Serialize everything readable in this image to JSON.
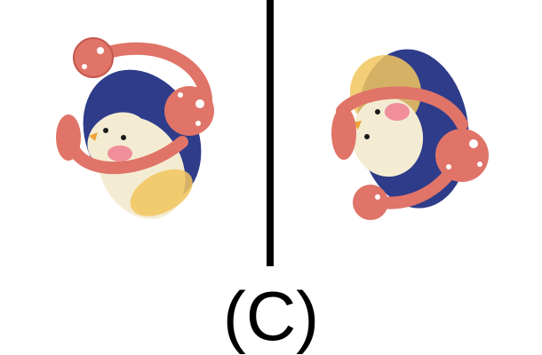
{
  "figure": {
    "caption": "(C)",
    "panels": [
      {
        "name": "penguin-toy-view-left",
        "description_icon": "penguin-toy-icon"
      },
      {
        "name": "penguin-toy-view-right",
        "description_icon": "penguin-toy-icon"
      }
    ]
  },
  "colors": {
    "body_blue": "#2e3c8a",
    "belly_cream": "#f4ecd2",
    "belly_yellow": "#f2c55e",
    "headband_coral": "#e07468",
    "headband_dark": "#c5564d",
    "cheek_pink": "#f08e9a",
    "beak_orange": "#f0a33a"
  }
}
